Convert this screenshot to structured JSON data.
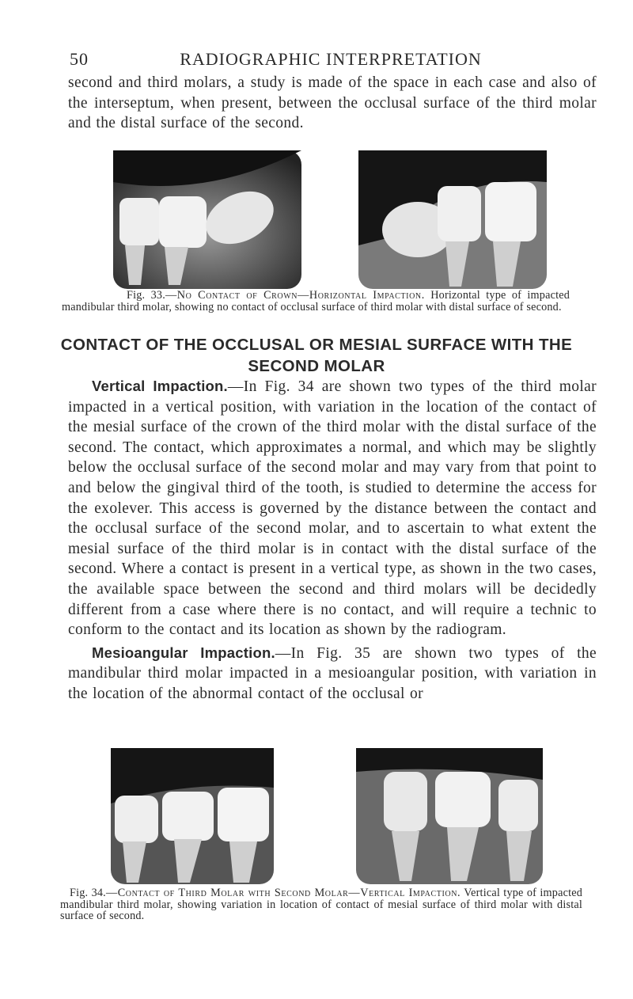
{
  "header": {
    "page_number": "50",
    "running_head": "RADIOGRAPHIC INTERPRETATION"
  },
  "intro": "second and third molars, a study is made of the space in each case and also of the interseptum, when present, between the occlusal surface of the third molar and the distal surface of the second.",
  "figures": [
    {
      "label": "Fig. 33.",
      "title": "—No Contact of Crown—Horizontal Impaction.",
      "text": "Horizontal type of impacted mandibular third molar, showing no contact of occlusal surface of third molar with distal surface of second."
    },
    {
      "label": "Fig. 34.",
      "title": "—Contact of Third Molar with Second Molar—Vertical Impaction.",
      "text": "Vertical type of impacted mandibular third molar, showing variation in location of contact of mesial surface of third molar with distal surface of second."
    }
  ],
  "section_heading": "CONTACT OF THE OCCLUSAL OR MESIAL SURFACE WITH THE SECOND MOLAR",
  "paragraphs": [
    {
      "run_in": "Vertical Impaction.",
      "text": "—In Fig. 34 are shown two types of the third molar impacted in a vertical position, with variation in the location of the contact of the mesial surface of the crown of the third molar with the distal surface of the second. The contact, which approximates a normal, and which may be slightly below the occlusal surface of the second molar and may vary from that point to and below the gingival third of the tooth, is studied to determine the access for the exolever. This access is governed by the distance between the contact and the occlusal surface of the second molar, and to ascertain to what extent the mesial surface of the third molar is in contact with the distal surface of the second. Where a contact is present in a vertical type, as shown in the two cases, the available space between the second and third molars will be decidedly different from a case where there is no contact, and will require a technic to conform to the contact and its location as shown by the radiogram."
    },
    {
      "run_in": "Mesioangular Impaction.",
      "text": "—In Fig. 35 are shown two types of the mandibular third molar impacted in a mesioangular position, with variation in the location of the abnormal contact of the occlusal or"
    }
  ]
}
